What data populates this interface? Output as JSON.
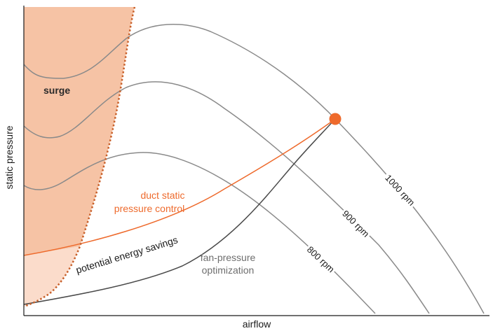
{
  "axes": {
    "x_label": "airflow",
    "y_label": "static pressure"
  },
  "regions": {
    "surge_label": "surge"
  },
  "annotations": {
    "duct_static_line1": "duct static",
    "duct_static_line2": "pressure control",
    "fan_pressure_line1": "fan-pressure",
    "fan_pressure_line2": "optimization",
    "energy_savings": "potential energy savings"
  },
  "fan_curves": [
    {
      "label": "1000 rpm"
    },
    {
      "label": "900 rpm"
    },
    {
      "label": "800 rpm"
    }
  ],
  "colors": {
    "surge_fill": "#f6c3a5",
    "savings_fill": "#fbdccb",
    "surge_line": "#c8602a",
    "duct_line": "#ee6a2c",
    "operating_point": "#ee6a2c",
    "fan_curve": "#8a8a8a",
    "optimization_line": "#4a4a4a",
    "axis": "#1a1a1a"
  }
}
